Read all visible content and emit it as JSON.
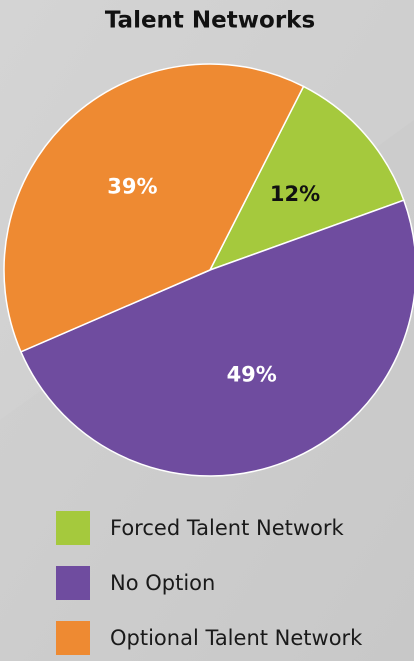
{
  "chart_data": {
    "type": "pie",
    "title": "Talent Networks",
    "categories": [
      "Forced Talent Network",
      "No Option",
      "Optional Talent Network"
    ],
    "values": [
      12,
      49,
      39
    ],
    "value_labels": [
      "12%",
      "49%",
      "39%"
    ],
    "colors": [
      "#a5c93d",
      "#6f4c9f",
      "#ee8a32"
    ],
    "legend": "bottom"
  }
}
